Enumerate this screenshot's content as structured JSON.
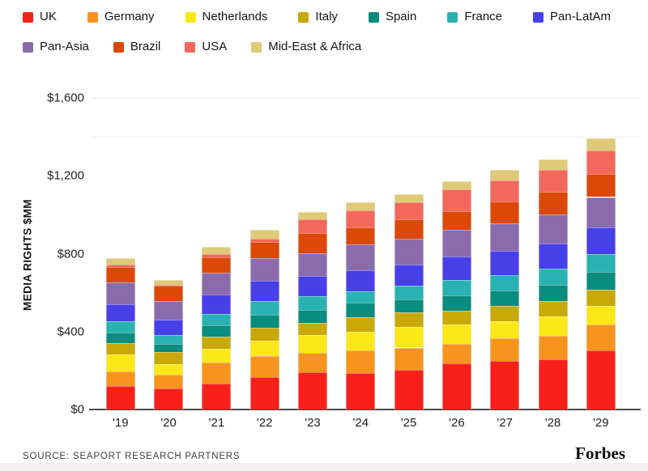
{
  "legend": {
    "rows": [
      [
        "UK",
        "Germany",
        "Netherlands",
        "Italy",
        "Spain",
        "France",
        "Pan-LatAm"
      ],
      [
        "Pan-Asia",
        "Brazil",
        "USA",
        "Mid-East & Africa"
      ]
    ]
  },
  "chart_data": {
    "type": "bar",
    "stacked": true,
    "title": "",
    "xlabel": "",
    "ylabel": "MEDIA RIGHTS $MM",
    "units": "$MM",
    "legend_position": "top",
    "grid": "faint horizontal lines at 1400 and 1600",
    "categories": [
      "'19",
      "'20",
      "'21",
      "'22",
      "'23",
      "'24",
      "'25",
      "'26",
      "'27",
      "'28",
      "'29"
    ],
    "ylim": [
      0,
      1600
    ],
    "yticks": [
      {
        "value": 0,
        "label": "$0"
      },
      {
        "value": 400,
        "label": "$400"
      },
      {
        "value": 800,
        "label": "$800"
      },
      {
        "value": 1200,
        "label": "$1,200"
      },
      {
        "value": 1600,
        "label": "$1,600"
      }
    ],
    "gridlines": [
      1400,
      1600
    ],
    "series": [
      {
        "name": "UK",
        "color": "#f7211a",
        "values": [
          121,
          108,
          135,
          166,
          190,
          188,
          202,
          236,
          249,
          256,
          304
        ]
      },
      {
        "name": "Germany",
        "color": "#f7941e",
        "values": [
          76,
          72,
          106,
          110,
          102,
          116,
          116,
          100,
          115,
          124,
          133
        ]
      },
      {
        "name": "Netherlands",
        "color": "#fce818",
        "values": [
          87,
          53,
          72,
          79,
          91,
          97,
          105,
          100,
          90,
          97,
          93
        ]
      },
      {
        "name": "Italy",
        "color": "#c9a80a",
        "values": [
          58,
          62,
          63,
          65,
          61,
          73,
          75,
          73,
          80,
          80,
          87
        ]
      },
      {
        "name": "Spain",
        "color": "#0a8c7f",
        "values": [
          51,
          41,
          58,
          66,
          69,
          73,
          69,
          79,
          79,
          83,
          88
        ]
      },
      {
        "name": "France",
        "color": "#29b2b2",
        "values": [
          59,
          48,
          55,
          69,
          69,
          58,
          69,
          77,
          79,
          83,
          91
        ]
      },
      {
        "name": "Pan-LatAm",
        "color": "#4740e8",
        "values": [
          90,
          76,
          101,
          104,
          105,
          108,
          110,
          120,
          121,
          127,
          138
        ]
      },
      {
        "name": "Pan-Asia",
        "color": "#8a6cac",
        "values": [
          110,
          97,
          113,
          120,
          116,
          134,
          133,
          138,
          141,
          152,
          157
        ]
      },
      {
        "name": "Brazil",
        "color": "#dc4807",
        "values": [
          79,
          79,
          79,
          80,
          101,
          87,
          97,
          97,
          115,
          115,
          119
        ]
      },
      {
        "name": "USA",
        "color": "#f3685c",
        "values": [
          15,
          6,
          15,
          18,
          73,
          88,
          88,
          110,
          106,
          115,
          120
        ]
      },
      {
        "name": "Mid-East & Africa",
        "color": "#dfca77",
        "values": [
          31,
          25,
          37,
          44,
          37,
          41,
          41,
          41,
          55,
          51,
          62
        ]
      }
    ],
    "totals": [
      777,
      667,
      834,
      921,
      1014,
      1063,
      1105,
      1171,
      1230,
      1283,
      1392
    ]
  },
  "footer": {
    "source": "SOURCE: SEAPORT RESEARCH PARTNERS",
    "brand": "Forbes"
  }
}
